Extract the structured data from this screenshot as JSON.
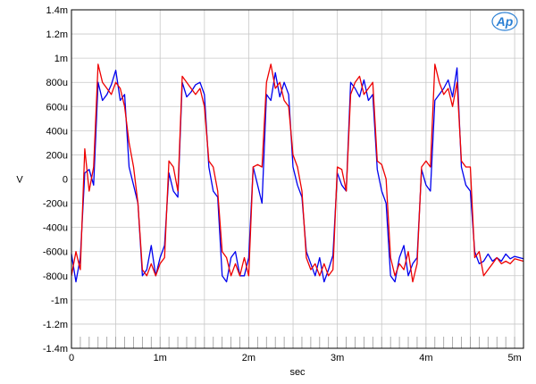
{
  "chart_data": {
    "type": "line",
    "title": "",
    "xlabel": "sec",
    "ylabel": "V",
    "xlim": [
      0,
      0.0051
    ],
    "ylim": [
      -0.0014,
      0.0014
    ],
    "grid": true,
    "logo": "Ap",
    "x_ticks": [
      {
        "value": 0,
        "label": "0"
      },
      {
        "value": 0.001,
        "label": "1m"
      },
      {
        "value": 0.002,
        "label": "2m"
      },
      {
        "value": 0.003,
        "label": "3m"
      },
      {
        "value": 0.004,
        "label": "4m"
      },
      {
        "value": 0.005,
        "label": "5m"
      }
    ],
    "y_ticks": [
      {
        "value": 0.0014,
        "label": "1.4m"
      },
      {
        "value": 0.0012,
        "label": "1.2m"
      },
      {
        "value": 0.001,
        "label": "1m"
      },
      {
        "value": 0.0008,
        "label": "800u"
      },
      {
        "value": 0.0006,
        "label": "600u"
      },
      {
        "value": 0.0004,
        "label": "400u"
      },
      {
        "value": 0.0002,
        "label": "200u"
      },
      {
        "value": 0,
        "label": "0"
      },
      {
        "value": -0.0002,
        "label": "-200u"
      },
      {
        "value": -0.0004,
        "label": "-400u"
      },
      {
        "value": -0.0006,
        "label": "-600u"
      },
      {
        "value": -0.0008,
        "label": "-800u"
      },
      {
        "value": -0.001,
        "label": "-1m"
      },
      {
        "value": -0.0012,
        "label": "-1.2m"
      },
      {
        "value": -0.0014,
        "label": "-1.4m"
      }
    ],
    "series": [
      {
        "color": "#0000ee",
        "x": [
          0,
          5e-05,
          0.0001,
          0.00015,
          0.0002,
          0.00025,
          0.0003,
          0.00035,
          0.0004,
          0.00045,
          0.0005,
          0.00055,
          0.0006,
          0.00065,
          0.0007,
          0.00075,
          0.0008,
          0.00085,
          0.0009,
          0.00095,
          0.001,
          0.00105,
          0.0011,
          0.00115,
          0.0012,
          0.00125,
          0.0013,
          0.00135,
          0.0014,
          0.00145,
          0.0015,
          0.00155,
          0.0016,
          0.00165,
          0.0017,
          0.00175,
          0.0018,
          0.00185,
          0.0019,
          0.00195,
          0.002,
          0.00205,
          0.0021,
          0.00215,
          0.0022,
          0.00225,
          0.0023,
          0.00235,
          0.0024,
          0.00245,
          0.0025,
          0.00255,
          0.0026,
          0.00265,
          0.0027,
          0.00275,
          0.0028,
          0.00285,
          0.0029,
          0.00295,
          0.003,
          0.00305,
          0.0031,
          0.00315,
          0.0032,
          0.00325,
          0.0033,
          0.00335,
          0.0034,
          0.00345,
          0.0035,
          0.00355,
          0.0036,
          0.00365,
          0.0037,
          0.00375,
          0.0038,
          0.00385,
          0.0039,
          0.00395,
          0.004,
          0.00405,
          0.0041,
          0.00415,
          0.0042,
          0.00425,
          0.0043,
          0.00435,
          0.0044,
          0.00445,
          0.0045,
          0.00455,
          0.0046,
          0.00465,
          0.0047,
          0.00475,
          0.0048,
          0.00485,
          0.0049,
          0.00495,
          0.005,
          0.0051
        ],
        "y": [
          -0.00062,
          -0.00085,
          -0.00065,
          5e-05,
          8e-05,
          -5e-05,
          0.0008,
          0.00065,
          0.0007,
          0.00078,
          0.0009,
          0.00065,
          0.0007,
          0.0001,
          -5e-05,
          -0.0002,
          -0.0008,
          -0.00075,
          -0.00055,
          -0.0008,
          -0.00065,
          -0.00055,
          5e-05,
          -0.0001,
          -0.00015,
          0.0008,
          0.00068,
          0.00072,
          0.00078,
          0.0008,
          0.0007,
          0.0001,
          -0.0001,
          -0.00015,
          -0.0008,
          -0.00085,
          -0.00065,
          -0.0006,
          -0.0008,
          -0.0008,
          -0.00065,
          0.0001,
          -5e-05,
          -0.0002,
          0.0007,
          0.00065,
          0.00088,
          0.00068,
          0.0008,
          0.0007,
          0.0001,
          -5e-05,
          -0.00015,
          -0.0006,
          -0.0007,
          -0.0008,
          -0.00065,
          -0.00085,
          -0.00075,
          -0.00063,
          5e-05,
          -5e-05,
          -0.0001,
          0.0008,
          0.00075,
          0.00068,
          0.00082,
          0.00065,
          0.0007,
          8e-05,
          -0.0001,
          -0.0002,
          -0.0008,
          -0.00085,
          -0.00065,
          -0.00055,
          -0.0008,
          -0.0007,
          -0.00065,
          8e-05,
          -5e-05,
          -0.0001,
          0.00065,
          0.0007,
          0.00075,
          0.00082,
          0.00068,
          0.00092,
          0.0001,
          -5e-05,
          -0.0001,
          -0.0006,
          -0.0007,
          -0.00068,
          -0.00062,
          -0.00068,
          -0.00065,
          -0.00068,
          -0.00062,
          -0.00066,
          -0.00064,
          -0.00066
        ]
      },
      {
        "color": "#ee0000",
        "x": [
          0,
          5e-05,
          0.0001,
          0.00015,
          0.0002,
          0.00025,
          0.0003,
          0.00035,
          0.0004,
          0.00045,
          0.0005,
          0.00055,
          0.0006,
          0.00065,
          0.0007,
          0.00075,
          0.0008,
          0.00085,
          0.0009,
          0.00095,
          0.001,
          0.00105,
          0.0011,
          0.00115,
          0.0012,
          0.00125,
          0.0013,
          0.00135,
          0.0014,
          0.00145,
          0.0015,
          0.00155,
          0.0016,
          0.00165,
          0.0017,
          0.00175,
          0.0018,
          0.00185,
          0.0019,
          0.00195,
          0.002,
          0.00205,
          0.0021,
          0.00215,
          0.0022,
          0.00225,
          0.0023,
          0.00235,
          0.0024,
          0.00245,
          0.0025,
          0.00255,
          0.0026,
          0.00265,
          0.0027,
          0.00275,
          0.0028,
          0.00285,
          0.0029,
          0.00295,
          0.003,
          0.00305,
          0.0031,
          0.00315,
          0.0032,
          0.00325,
          0.0033,
          0.00335,
          0.0034,
          0.00345,
          0.0035,
          0.00355,
          0.0036,
          0.00365,
          0.0037,
          0.00375,
          0.0038,
          0.00385,
          0.0039,
          0.00395,
          0.004,
          0.00405,
          0.0041,
          0.00415,
          0.0042,
          0.00425,
          0.0043,
          0.00435,
          0.0044,
          0.00445,
          0.0045,
          0.00455,
          0.0046,
          0.00465,
          0.0047,
          0.00475,
          0.0048,
          0.00485,
          0.0049,
          0.00495,
          0.005,
          0.0051
        ],
        "y": [
          -0.0008,
          -0.0006,
          -0.00075,
          0.00025,
          -0.0001,
          0.0001,
          0.00095,
          0.0008,
          0.00075,
          0.0007,
          0.0008,
          0.00075,
          0.0006,
          0.0003,
          0.0001,
          -0.0002,
          -0.00075,
          -0.0008,
          -0.0007,
          -0.0008,
          -0.0007,
          -0.00065,
          0.00015,
          0.0001,
          -0.0001,
          0.00085,
          0.0008,
          0.00075,
          0.0007,
          0.00075,
          0.0006,
          0.00015,
          0.0001,
          -0.0001,
          -0.0006,
          -0.00065,
          -0.0008,
          -0.0007,
          -0.0008,
          -0.00065,
          -0.0008,
          0.0001,
          0.00012,
          0.0001,
          0.0008,
          0.00095,
          0.00075,
          0.0008,
          0.00065,
          0.0006,
          0.0002,
          0.0001,
          -0.0001,
          -0.00065,
          -0.00075,
          -0.0007,
          -0.0008,
          -0.0007,
          -0.0008,
          -0.00075,
          0.0001,
          8e-05,
          -0.0001,
          0.0007,
          0.0008,
          0.00085,
          0.0007,
          0.00075,
          0.0008,
          0.00015,
          0.00012,
          0.0,
          -0.00065,
          -0.0008,
          -0.0007,
          -0.00075,
          -0.0006,
          -0.00085,
          -0.0007,
          0.0001,
          0.00015,
          0.0001,
          0.00095,
          0.0008,
          0.0007,
          0.00075,
          0.0006,
          0.0008,
          0.00015,
          0.0001,
          0.0001,
          -0.00065,
          -0.0006,
          -0.0008,
          -0.00075,
          -0.0007,
          -0.00065,
          -0.0007,
          -0.00068,
          -0.0007,
          -0.00066,
          -0.00068
        ]
      }
    ]
  }
}
